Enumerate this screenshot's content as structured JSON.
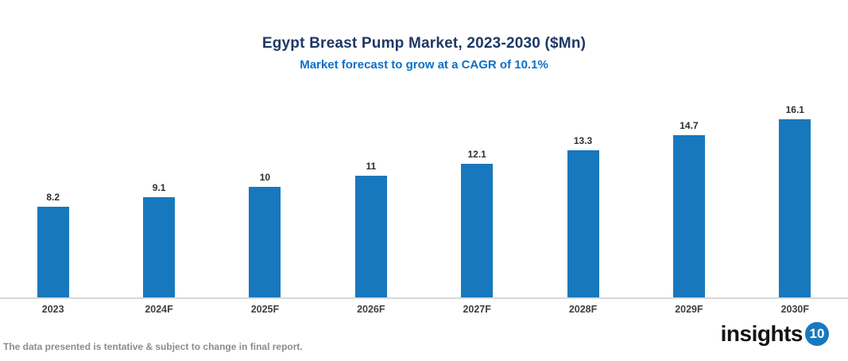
{
  "header": {
    "title": "Egypt Breast Pump Market, 2023-2030 ($Mn)",
    "subtitle": "Market forecast to grow at a CAGR of 10.1%"
  },
  "chart_data": {
    "type": "bar",
    "title": "Egypt Breast Pump Market, 2023-2030 ($Mn)",
    "subtitle": "Market forecast to grow at a CAGR of 10.1%",
    "categories": [
      "2023",
      "2024F",
      "2025F",
      "2026F",
      "2027F",
      "2028F",
      "2029F",
      "2030F"
    ],
    "values": [
      8.2,
      9.1,
      10,
      11,
      12.1,
      13.3,
      14.7,
      16.1
    ],
    "value_labels": [
      "8.2",
      "9.1",
      "10",
      "11",
      "12.1",
      "13.3",
      "14.7",
      "16.1"
    ],
    "xlabel": "",
    "ylabel": "",
    "ylim": [
      0,
      17
    ],
    "grid": false,
    "legend": false,
    "bar_color": "#1878BE",
    "axis_line_color": "#D8D8D8",
    "title_color": "#1F3864",
    "subtitle_color": "#0B70C8"
  },
  "footer": {
    "disclaimer": "The data presented is tentative & subject to change in final report.",
    "logo": {
      "text": "insights",
      "badge": "10",
      "badge_color": "#1878BE"
    }
  }
}
